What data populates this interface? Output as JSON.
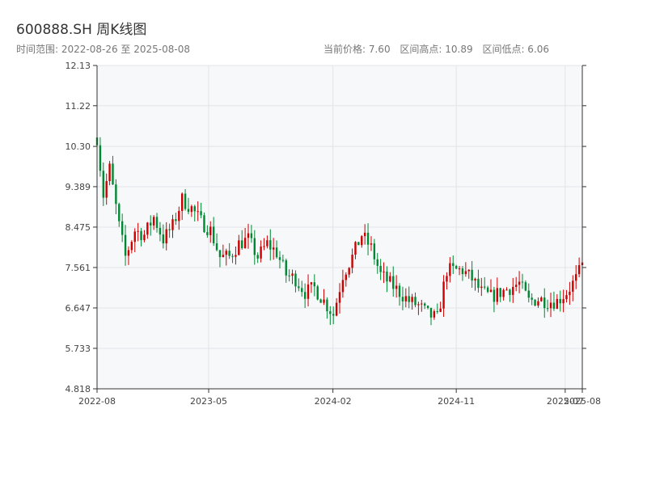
{
  "header": {
    "title": "600888.SH 周K线图",
    "subtitle": "时间范围: 2022-08-26 至 2025-08-08",
    "stats": {
      "current_price": "当前价格: 7.60",
      "range_high": "区间高点: 10.89",
      "range_low": "区间低点: 6.06"
    }
  },
  "colors": {
    "up": "#cc0000",
    "down": "#008833",
    "plot_bg": "#f7f8fa",
    "grid": "#e2e4e8",
    "axis": "#333333"
  },
  "chart_data": {
    "type": "candlestick",
    "title": "600888.SH 周K线图",
    "xlabel": "",
    "ylabel": "",
    "ylim": [
      4.818,
      12.13
    ],
    "yticks": [
      4.818,
      5.733,
      6.647,
      7.561,
      8.475,
      9.389,
      10.3,
      11.22,
      12.13
    ],
    "ytick_labels": [
      "4.818",
      "5.733",
      "6.647",
      "7.561",
      "8.475",
      "9.389",
      "10.30",
      "11.22",
      "12.13"
    ],
    "xrange": [
      "2022-08-26",
      "2025-08-08"
    ],
    "xticks": [
      {
        "date": "2022-08-26",
        "label": "2022-08"
      },
      {
        "date": "2023-05-01",
        "label": "2023-05"
      },
      {
        "date": "2024-02-01",
        "label": "2024-02"
      },
      {
        "date": "2024-11-01",
        "label": "2024-11"
      },
      {
        "date": "2025-07-01",
        "label": "2025-07"
      },
      {
        "date": "2025-08-08",
        "label": "2025-08"
      }
    ],
    "grid": true,
    "anchors": [
      [
        "2022-08-26",
        10.5
      ],
      [
        "2022-09-09",
        9.2
      ],
      [
        "2022-09-23",
        9.8
      ],
      [
        "2022-10-14",
        8.5
      ],
      [
        "2022-10-28",
        7.8
      ],
      [
        "2022-11-18",
        8.4
      ],
      [
        "2022-12-09",
        8.3
      ],
      [
        "2022-12-30",
        8.7
      ],
      [
        "2023-01-20",
        8.2
      ],
      [
        "2023-02-10",
        8.5
      ],
      [
        "2023-03-03",
        9.1
      ],
      [
        "2023-03-24",
        8.9
      ],
      [
        "2023-04-14",
        8.6
      ],
      [
        "2023-05-05",
        8.4
      ],
      [
        "2023-05-26",
        7.8
      ],
      [
        "2023-06-16",
        7.8
      ],
      [
        "2023-07-07",
        8.1
      ],
      [
        "2023-07-28",
        8.2
      ],
      [
        "2023-08-18",
        7.8
      ],
      [
        "2023-09-08",
        8.1
      ],
      [
        "2023-09-29",
        7.9
      ],
      [
        "2023-10-20",
        7.4
      ],
      [
        "2023-11-10",
        7.3
      ],
      [
        "2023-12-01",
        7.0
      ],
      [
        "2023-12-22",
        7.1
      ],
      [
        "2024-01-12",
        6.8
      ],
      [
        "2024-02-02",
        6.5
      ],
      [
        "2024-02-23",
        7.4
      ],
      [
        "2024-03-15",
        7.8
      ],
      [
        "2024-04-05",
        8.3
      ],
      [
        "2024-04-26",
        8.0
      ],
      [
        "2024-05-17",
        7.4
      ],
      [
        "2024-06-07",
        7.2
      ],
      [
        "2024-06-28",
        7.0
      ],
      [
        "2024-07-19",
        6.8
      ],
      [
        "2024-08-09",
        6.7
      ],
      [
        "2024-08-30",
        6.5
      ],
      [
        "2024-09-20",
        6.4
      ],
      [
        "2024-10-11",
        7.5
      ],
      [
        "2024-10-25",
        7.5
      ],
      [
        "2024-11-15",
        7.5
      ],
      [
        "2024-12-06",
        7.3
      ],
      [
        "2024-12-27",
        7.0
      ],
      [
        "2025-01-17",
        6.9
      ],
      [
        "2025-02-07",
        7.0
      ],
      [
        "2025-02-28",
        7.1
      ],
      [
        "2025-03-21",
        7.2
      ],
      [
        "2025-04-11",
        6.8
      ],
      [
        "2025-05-02",
        6.85
      ],
      [
        "2025-05-23",
        6.8
      ],
      [
        "2025-06-13",
        6.8
      ],
      [
        "2025-07-04",
        7.0
      ],
      [
        "2025-07-25",
        7.3
      ],
      [
        "2025-08-08",
        7.6
      ]
    ]
  }
}
